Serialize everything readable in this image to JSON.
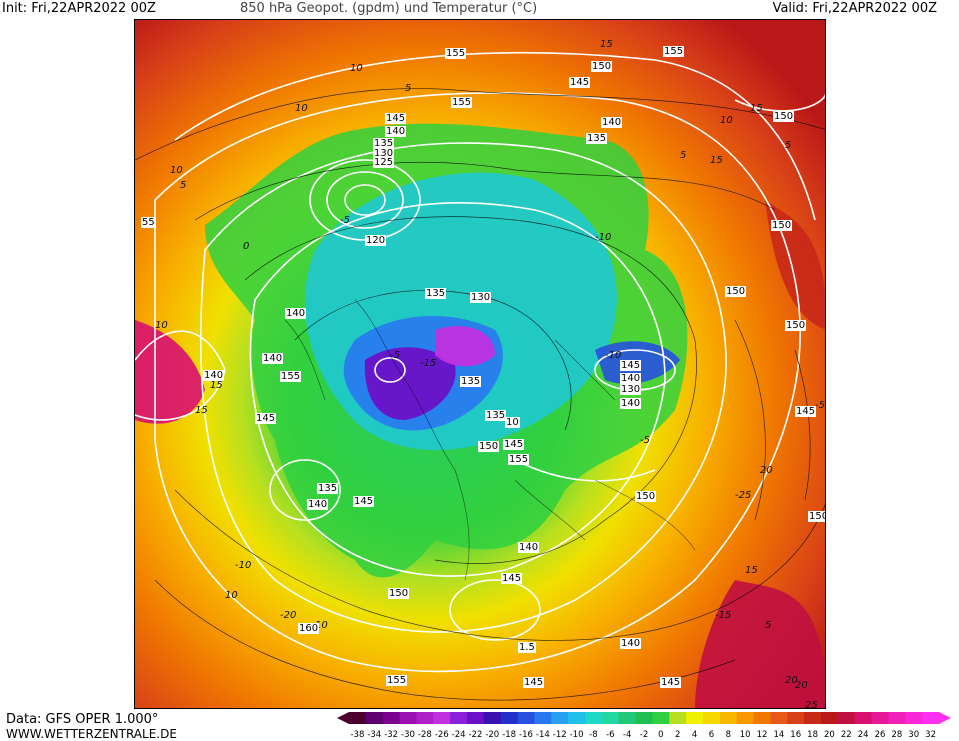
{
  "header": {
    "init": "Init: Fri,22APR2022 00Z",
    "title": "850 hPa Geopot. (gpdm) und Temperatur (°C)",
    "valid": "Valid: Fri,22APR2022 00Z"
  },
  "footer": {
    "data_source": "Data: GFS OPER 1.000°",
    "website": "WWW.WETTERZENTRALE.DE"
  },
  "colorbar": {
    "ticks": [
      "-38",
      "-34",
      "-32",
      "-30",
      "-28",
      "-26",
      "-24",
      "-22",
      "-20",
      "-18",
      "-16",
      "-14",
      "-12",
      "-10",
      "-8",
      "-6",
      "-4",
      "-2",
      "0",
      "2",
      "4",
      "6",
      "8",
      "10",
      "12",
      "14",
      "16",
      "18",
      "20",
      "22",
      "24",
      "26",
      "28",
      "30",
      "32"
    ],
    "colors": [
      "#4b0030",
      "#600070",
      "#7a0090",
      "#9a10b0",
      "#b020c8",
      "#c030e0",
      "#8a20d8",
      "#6a10c8",
      "#3a10b0",
      "#2030c8",
      "#2850e0",
      "#2878f0",
      "#28a0f0",
      "#20c0e8",
      "#20d8c8",
      "#20d8a0",
      "#20c878",
      "#20c050",
      "#30d040",
      "#b8e020",
      "#f0f000",
      "#f8d800",
      "#f8b800",
      "#f89800",
      "#f07800",
      "#e85818",
      "#d84018",
      "#c82818",
      "#b81818",
      "#c01040",
      "#d81070",
      "#e81898",
      "#f020b8",
      "#f828d8",
      "#ff30f0"
    ]
  },
  "map": {
    "temperature_labels": [
      "15",
      "10",
      "5",
      "10",
      "0",
      "-5",
      "-10",
      "-5",
      "-15",
      "-10",
      "-5",
      "10",
      "15",
      "10",
      "5",
      "15",
      "5",
      "5",
      "10",
      "15",
      "10",
      "15",
      "20",
      "-25",
      "10",
      "15",
      "20",
      "-15",
      "-5",
      "-10",
      "-20",
      "10",
      "5",
      "15",
      "20",
      "25"
    ],
    "geopotential_labels": [
      "155",
      "155",
      "150",
      "145",
      "155",
      "140",
      "135",
      "145",
      "140",
      "135",
      "130",
      "125",
      "150",
      "120",
      "135",
      "130",
      "150",
      "140",
      "140",
      "155",
      "145",
      "140",
      "130",
      "135",
      "140",
      "145",
      "150",
      "135",
      "10",
      "150",
      "145",
      "155",
      "145",
      "150",
      "135",
      "140",
      "145",
      "150",
      "150",
      "140",
      "145",
      "160",
      "155",
      "140",
      "145",
      "145",
      "150",
      "55",
      "140",
      "1.5"
    ]
  }
}
